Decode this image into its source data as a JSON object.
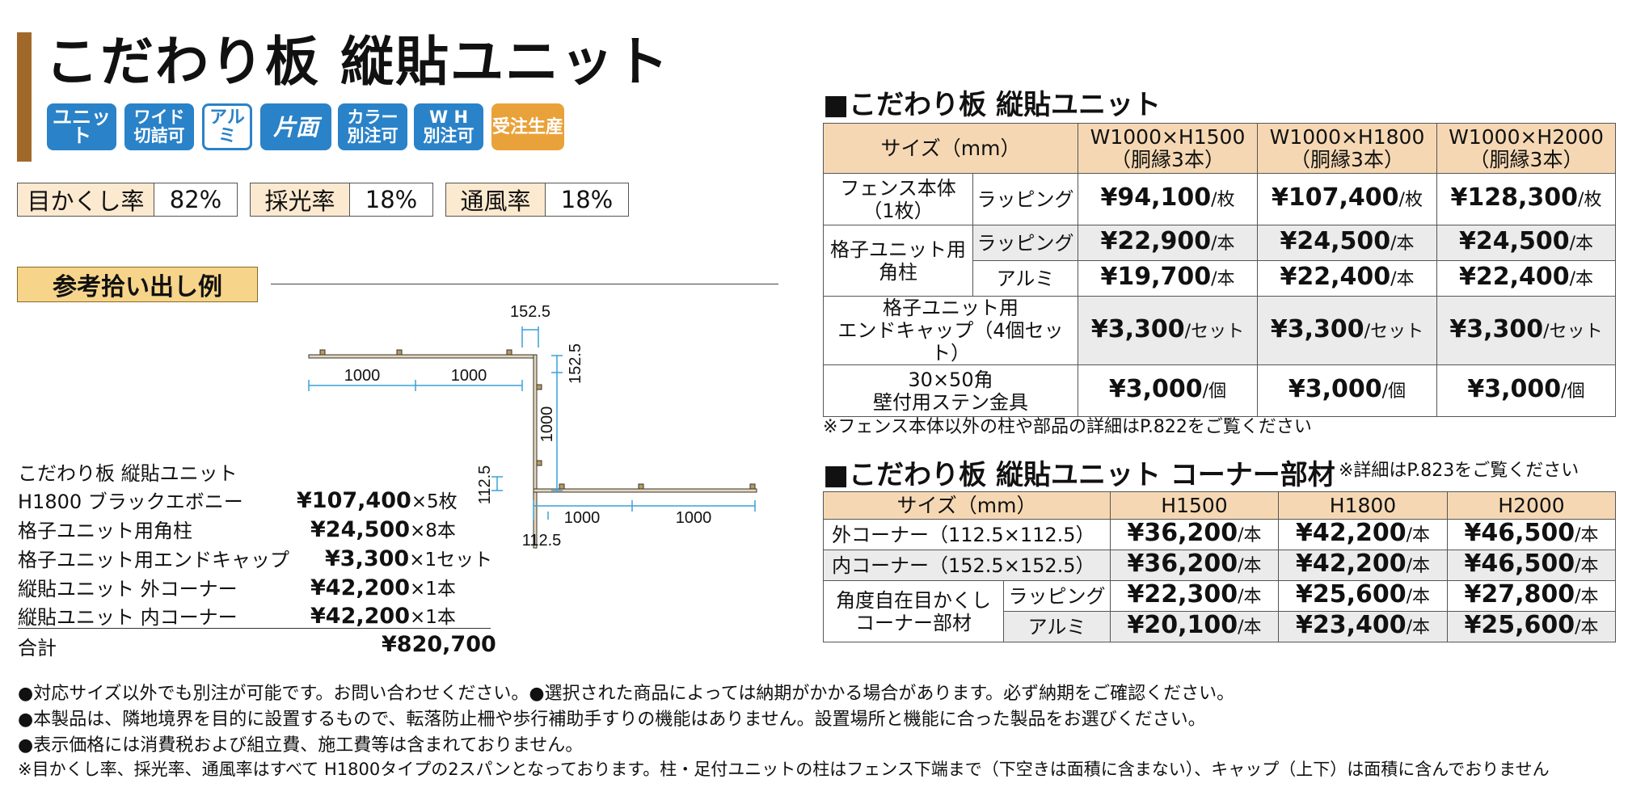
{
  "title": "こだわり板 縦貼ユニット",
  "badges": [
    {
      "text": "ユニット",
      "color": "#2a82c8"
    },
    {
      "text": "ワイド\n切詰可",
      "color": "#2a82c8"
    },
    {
      "text": "アルミ",
      "color": "#2a82c8"
    },
    {
      "text": "片面",
      "color": "#2a82c8"
    },
    {
      "text": "カラー\n別注可",
      "color": "#2a82c8"
    },
    {
      "text": "W H\n別注可",
      "color": "#2a82c8"
    },
    {
      "text": "受注生産",
      "color": "#e9a23a"
    }
  ],
  "rates": [
    {
      "label": "目かくし率",
      "value": "82%"
    },
    {
      "label": "採光率",
      "value": "18%"
    },
    {
      "label": "通風率",
      "value": "18%"
    }
  ],
  "example": {
    "header": "参考拾い出し例",
    "items": [
      {
        "name": "こだわり板 縦貼ユニット",
        "price": "",
        "qty": ""
      },
      {
        "name": "H1800 ブラックエボニー",
        "price": "¥107,400",
        "qty": "×5枚"
      },
      {
        "name": "格子ユニット用角柱",
        "price": "¥24,500",
        "qty": "×8本"
      },
      {
        "name": "格子ユニット用エンドキャップ",
        "price": "¥3,300",
        "qty": "×1セット"
      },
      {
        "name": "縦貼ユニット 外コーナー",
        "price": "¥42,200",
        "qty": "×1本"
      },
      {
        "name": "縦貼ユニット 内コーナー",
        "price": "¥42,200",
        "qty": "×1本"
      }
    ],
    "total_label": "合計",
    "total": "¥820,700"
  },
  "diagram": {
    "dims": {
      "top_left_span": "1000",
      "top_right_span": "1000",
      "inner_corner_w": "152.5",
      "inner_corner_h": "152.5",
      "vertical_span": "1000",
      "outer_corner_h": "112.5",
      "outer_corner_w": "112.5",
      "bottom_left_span": "1000",
      "bottom_right_span": "1000"
    }
  },
  "table1": {
    "title": "■こだわり板 縦貼ユニット",
    "size_header": "サイズ（mm）",
    "columns": [
      "W1000×H1500\n（胴縁3本）",
      "W1000×H1800\n（胴縁3本）",
      "W1000×H2000\n（胴縁3本）"
    ],
    "rows": [
      {
        "label": "フェンス本体\n（1枚）",
        "sub": "ラッピング",
        "prices": [
          "¥94,100",
          "¥107,400",
          "¥128,300"
        ],
        "unit": "/枚"
      },
      {
        "label": "格子ユニット用\n角柱",
        "sub": "ラッピング",
        "prices": [
          "¥22,900",
          "¥24,500",
          "¥24,500"
        ],
        "unit": "/本"
      },
      {
        "label": "",
        "sub": "アルミ",
        "prices": [
          "¥19,700",
          "¥22,400",
          "¥22,400"
        ],
        "unit": "/本"
      },
      {
        "label": "格子ユニット用\nエンドキャップ（4個セット）",
        "sub": "",
        "prices": [
          "¥3,300",
          "¥3,300",
          "¥3,300"
        ],
        "unit": "/セット"
      },
      {
        "label": "30×50角\n壁付用ステン金具",
        "sub": "",
        "prices": [
          "¥3,000",
          "¥3,000",
          "¥3,000"
        ],
        "unit": "/個"
      }
    ],
    "note": "※フェンス本体以外の柱や部品の詳細はP.822をご覧ください"
  },
  "table2": {
    "title": "■こだわり板 縦貼ユニット コーナー部材",
    "title_note": "※詳細はP.823をご覧ください",
    "size_header": "サイズ（mm）",
    "columns": [
      "H1500",
      "H1800",
      "H2000"
    ],
    "rows": [
      {
        "label": "外コーナー（112.5×112.5）",
        "sub": "",
        "prices": [
          "¥36,200",
          "¥42,200",
          "¥46,500"
        ],
        "unit": "/本"
      },
      {
        "label": "内コーナー（152.5×152.5）",
        "sub": "",
        "prices": [
          "¥36,200",
          "¥42,200",
          "¥46,500"
        ],
        "unit": "/本"
      },
      {
        "label": "角度自在目かくし\nコーナー部材",
        "sub": "ラッピング",
        "prices": [
          "¥22,300",
          "¥25,600",
          "¥27,800"
        ],
        "unit": "/本"
      },
      {
        "label": "",
        "sub": "アルミ",
        "prices": [
          "¥20,100",
          "¥23,400",
          "¥25,600"
        ],
        "unit": "/本"
      }
    ]
  },
  "footnotes": [
    "●対応サイズ以外でも別注が可能です。お問い合わせください。●選択された商品によっては納期がかかる場合があります。必ず納期をご確認ください。",
    "●本製品は、隣地境界を目的に設置するもので、転落防止柵や歩行補助手すりの機能はありません。設置場所と機能に合った製品をお選びください。",
    "●表示価格には消費税および組立費、施工費等は含まれておりません。",
    "※目かくし率、採光率、通風率はすべて H1800タイプの2スパンとなっております。柱・足付ユニットの柱はフェンス下端まで（下空きは面積に含まない）、キャップ（上下）は面積に含んでおりません"
  ]
}
